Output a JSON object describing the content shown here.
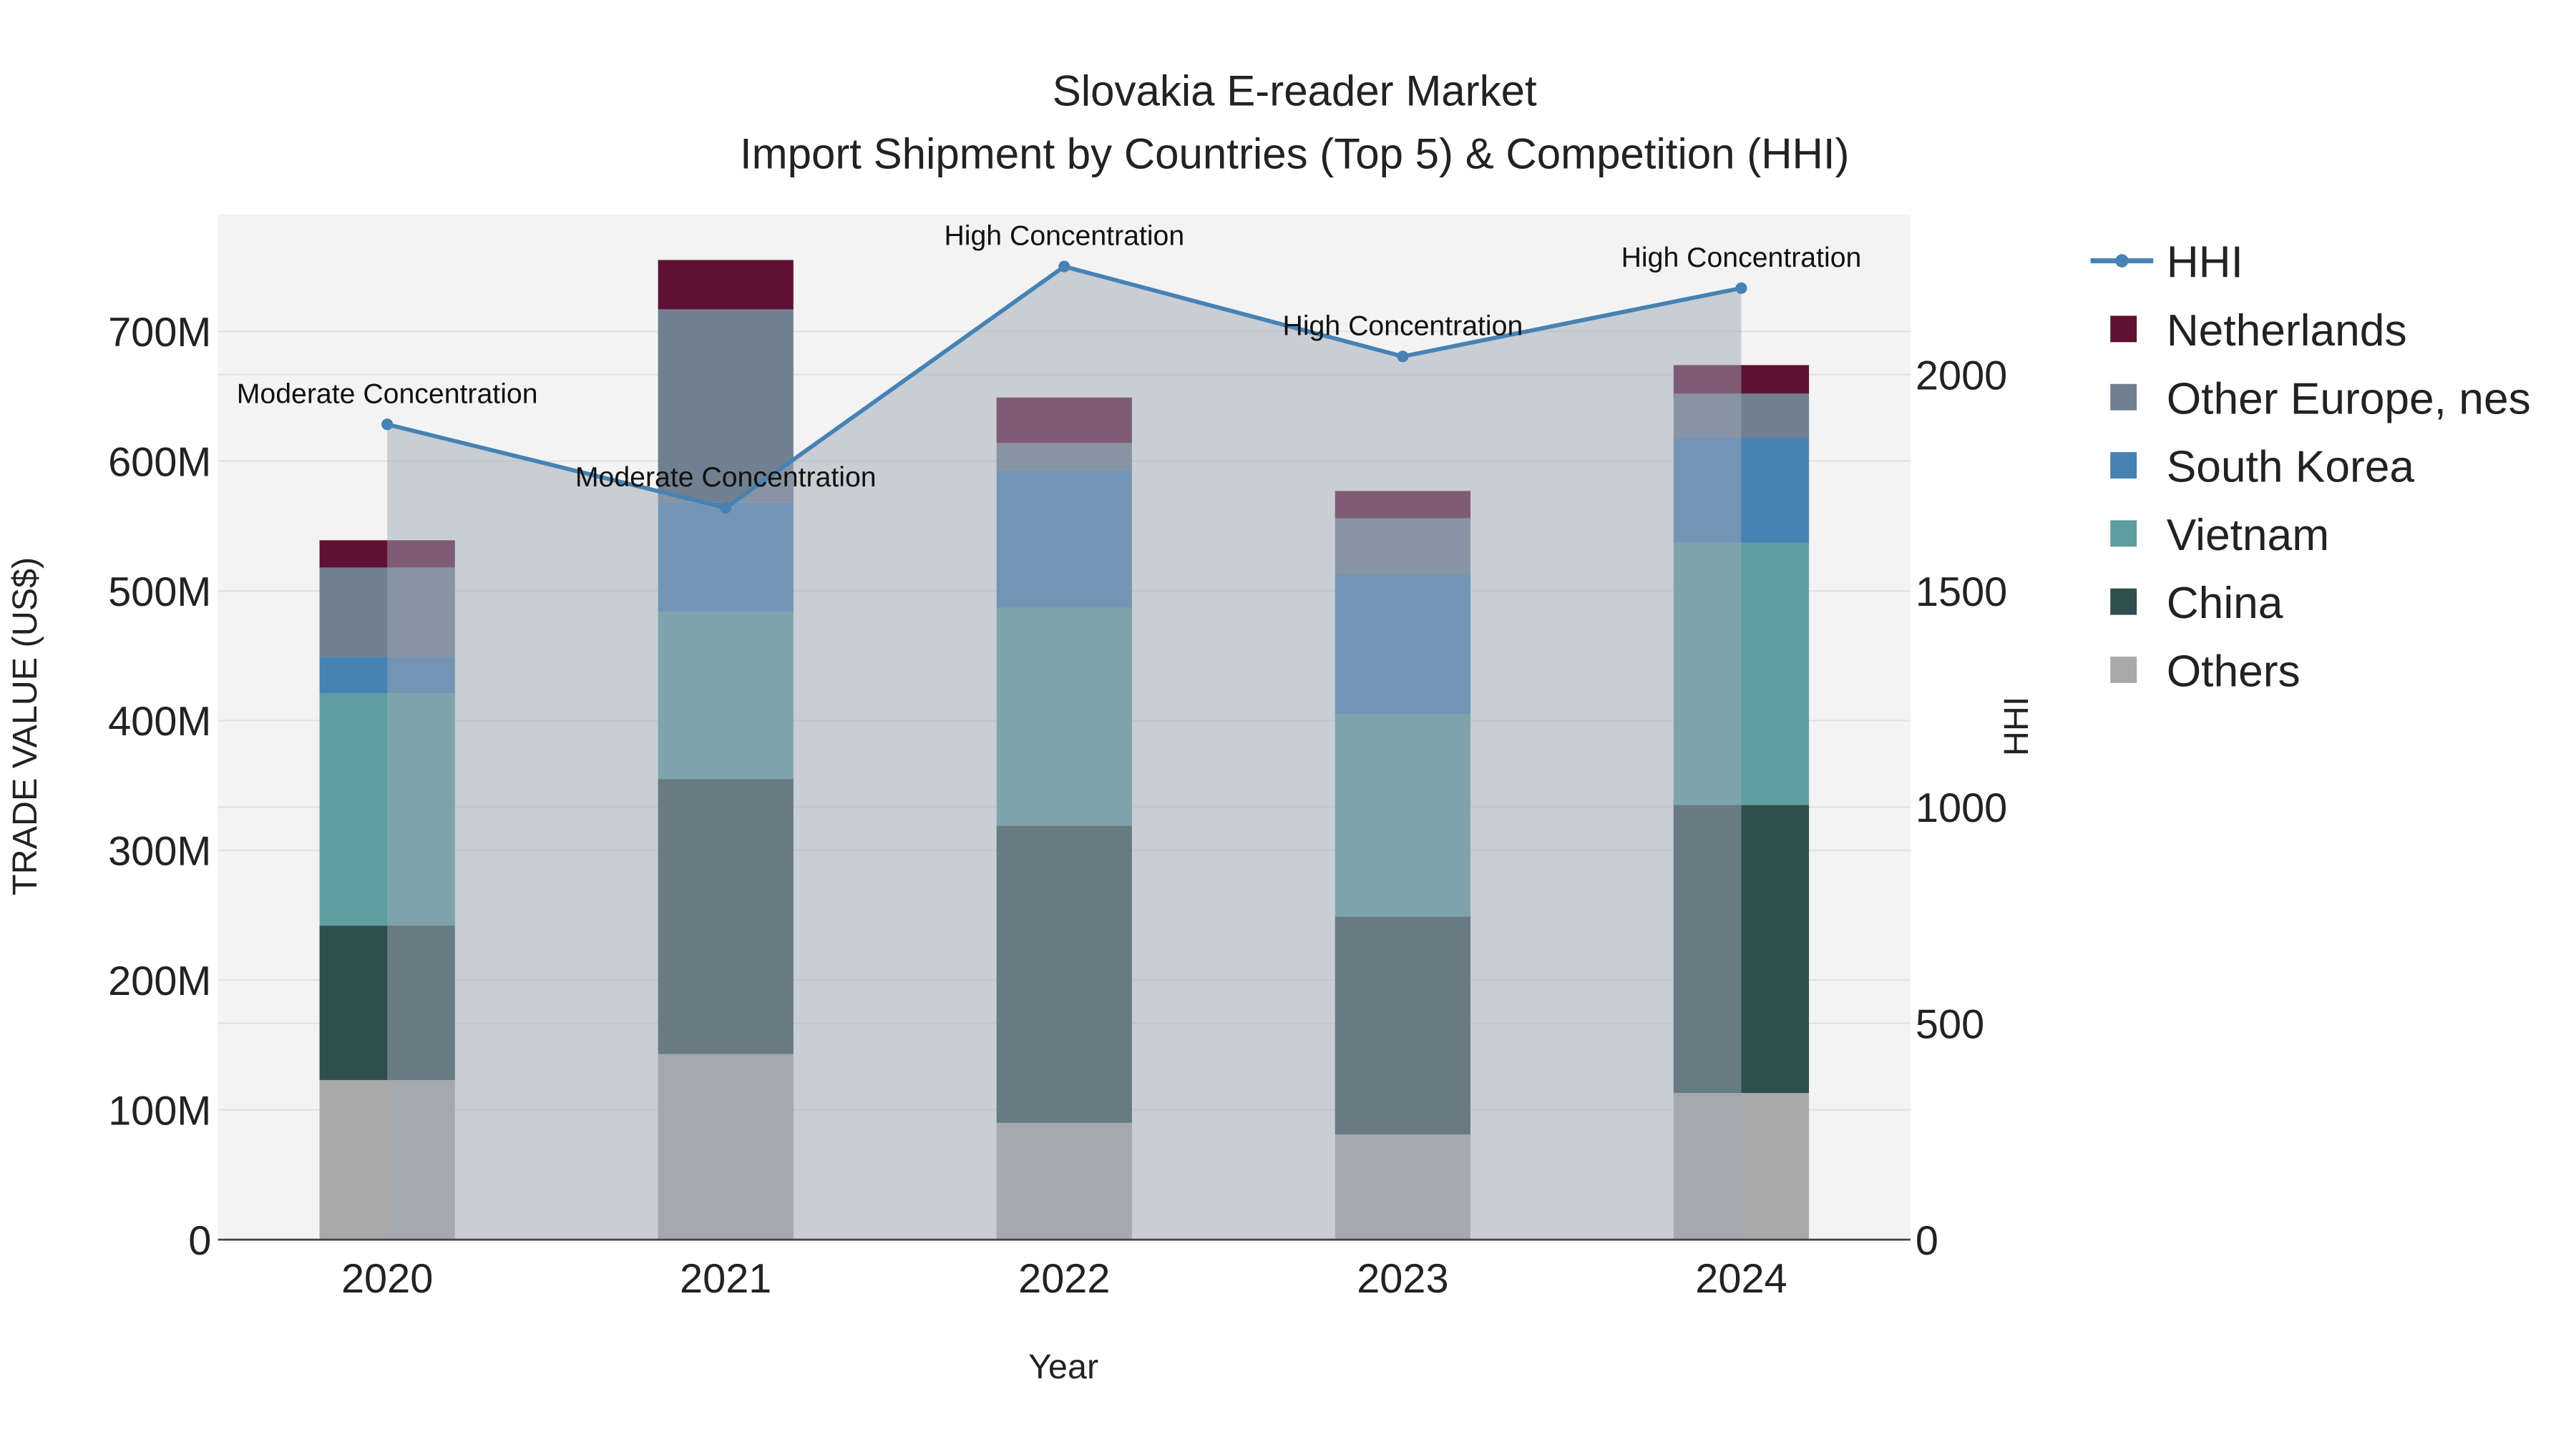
{
  "chart_data": {
    "type": "bar",
    "title": "Slovakia E-reader Market",
    "subtitle": "Import Shipment by Countries (Top 5) & Competition (HHI)",
    "xlabel": "Year",
    "ylabel": "TRADE VALUE (US$)",
    "y2label": "HHI",
    "categories": [
      "2020",
      "2021",
      "2022",
      "2023",
      "2024"
    ],
    "ylim": [
      0,
      790
    ],
    "y_unit": "M US$",
    "yticks": [
      0,
      100,
      200,
      300,
      400,
      500,
      600,
      700
    ],
    "ytick_labels": [
      "0",
      "100M",
      "200M",
      "300M",
      "400M",
      "500M",
      "600M",
      "700M"
    ],
    "y2lim": [
      0,
      2370
    ],
    "y2ticks": [
      0,
      500,
      1000,
      1500,
      2000
    ],
    "y2tick_labels": [
      "0",
      "500",
      "1000",
      "1500",
      "2000"
    ],
    "stacked": true,
    "series": [
      {
        "name": "Others",
        "color": "#a9a9a9",
        "values": [
          123,
          143,
          90,
          81,
          113
        ]
      },
      {
        "name": "China",
        "color": "#2f4f4f",
        "values": [
          119,
          212,
          229,
          168,
          222
        ]
      },
      {
        "name": "Vietnam",
        "color": "#5f9ea0",
        "values": [
          179,
          129,
          168,
          156,
          202
        ]
      },
      {
        "name": "South Korea",
        "color": "#4682b4",
        "values": [
          28,
          84,
          106,
          108,
          81
        ]
      },
      {
        "name": "Other Europe, nes",
        "color": "#708090",
        "values": [
          69,
          149,
          21,
          43,
          34
        ]
      },
      {
        "name": "Netherlands",
        "color": "#5f1134",
        "values": [
          21,
          38,
          35,
          21,
          22
        ]
      }
    ],
    "hhi": {
      "name": "HHI",
      "color": "#4682b4",
      "values": [
        1885,
        1692,
        2250,
        2042,
        2200
      ],
      "annotations": [
        "Moderate Concentration",
        "Moderate Concentration",
        "High Concentration",
        "High Concentration",
        "High Concentration"
      ]
    },
    "legend": {
      "placement": "right",
      "items": [
        "HHI",
        "Netherlands",
        "Other Europe, nes",
        "South Korea",
        "Vietnam",
        "China",
        "Others"
      ]
    },
    "grid": true
  }
}
